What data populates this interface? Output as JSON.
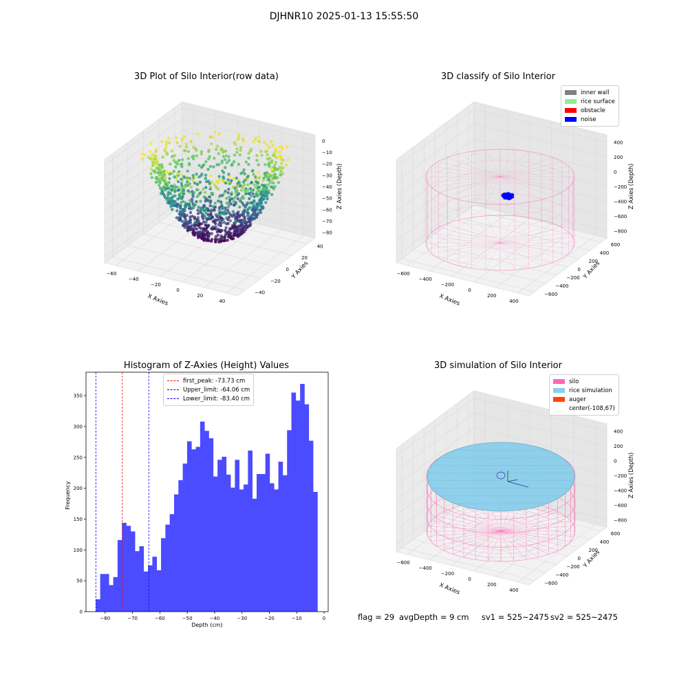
{
  "figure": {
    "suptitle": "DJHNR10 2025-01-13 15:55:50"
  },
  "colors": {
    "viridis": [
      "#440154",
      "#3b528b",
      "#21918c",
      "#5ec962",
      "#fde725"
    ],
    "inner_wall": "#808080",
    "rice_surface": "#90ee90",
    "obstacle": "#ff0000",
    "noise": "#0000ff",
    "silo": "#ff69b4",
    "rice_simulation": "#87ceeb",
    "auger": "#ff4500",
    "hist_bar": "#4b4bff"
  },
  "chart_data": [
    {
      "type": "scatter",
      "projection": "3d",
      "title": "3D Plot of Silo Interior(row data)",
      "xlabel": "X Axies",
      "ylabel": "Y Axies",
      "zlabel": "Z Axies (Depth)",
      "xticks": [
        "−60",
        "−40",
        "−20",
        "0",
        "20",
        "40"
      ],
      "yticks": [
        "−40",
        "−20",
        "0",
        "20",
        "40"
      ],
      "zticks": [
        "0",
        "−10",
        "−20",
        "−30",
        "−40",
        "−50",
        "−60",
        "−70",
        "−80"
      ],
      "xlim": [
        -65,
        50
      ],
      "ylim": [
        -50,
        50
      ],
      "zlim": [
        -85,
        0
      ],
      "colormap": "viridis"
    },
    {
      "type": "scatter",
      "projection": "3d",
      "title": "3D classify of Silo Interior",
      "xlabel": "X Axies",
      "ylabel": "Y Axies",
      "zlabel": "Z Axies (Depth)",
      "xticks": [
        "−600",
        "−400",
        "−200",
        "0",
        "200",
        "400"
      ],
      "yticks": [
        "−600",
        "−400",
        "−200",
        "0",
        "200",
        "400",
        "600"
      ],
      "zticks": [
        "400",
        "200",
        "0",
        "−200",
        "−400",
        "−600",
        "−800"
      ],
      "legend": [
        "inner wall",
        "rice surface",
        "obstacle",
        "noise"
      ],
      "legend_loc": "upper right"
    },
    {
      "type": "bar",
      "title": "Histogram of Z-Axies (Height) Values",
      "xlabel": "Depth (cm)",
      "ylabel": "Frequency",
      "xticks": [
        "−80",
        "−70",
        "−60",
        "−50",
        "−40",
        "−30",
        "−20",
        "−10",
        "0"
      ],
      "yticks": [
        "0",
        "50",
        "100",
        "150",
        "200",
        "250",
        "300",
        "350"
      ],
      "xlim": [
        -87,
        1.5
      ],
      "ylim": [
        0,
        388
      ],
      "bin_start": -83.4,
      "bin_width": 1.588,
      "values": [
        20,
        61,
        61,
        43,
        56,
        116,
        144,
        139,
        130,
        98,
        106,
        65,
        75,
        89,
        67,
        119,
        141,
        158,
        190,
        213,
        240,
        276,
        263,
        267,
        308,
        293,
        281,
        219,
        246,
        251,
        222,
        201,
        246,
        198,
        206,
        261,
        183,
        223,
        223,
        256,
        208,
        198,
        243,
        221,
        294,
        355,
        342,
        369,
        336,
        277,
        194
      ],
      "vlines": [
        {
          "x": -73.73,
          "label": "first_peak: -73.73 cm",
          "color": "#ff0000"
        },
        {
          "x": -64.06,
          "label": "Upper_limit: -64.06 cm",
          "color": "#0000ff"
        },
        {
          "x": -83.4,
          "label": "Lower_limit: -83.40 cm",
          "color": "#0000ff"
        }
      ],
      "legend_loc": "upper center"
    },
    {
      "type": "surface",
      "projection": "3d",
      "title": "3D simulation of Silo Interior",
      "xlabel": "X Axies",
      "ylabel": "Y Axies",
      "zlabel": "Z Axies (Depth)",
      "xticks": [
        "−600",
        "−400",
        "−200",
        "0",
        "200",
        "400"
      ],
      "yticks": [
        "−600",
        "−400",
        "−200",
        "0",
        "200",
        "400",
        "600"
      ],
      "zticks": [
        "400",
        "200",
        "0",
        "−200",
        "−400",
        "−600",
        "−800"
      ],
      "legend": [
        "silo",
        "rice simulation",
        "auger",
        "center(-108,67)"
      ],
      "legend_loc": "upper right"
    }
  ],
  "footer": {
    "flag": "flag = 29",
    "avg": "avgDepth = 9 cm",
    "sv1": "sv1 = 525~2475",
    "sv2": "sv2 = 525~2475"
  }
}
